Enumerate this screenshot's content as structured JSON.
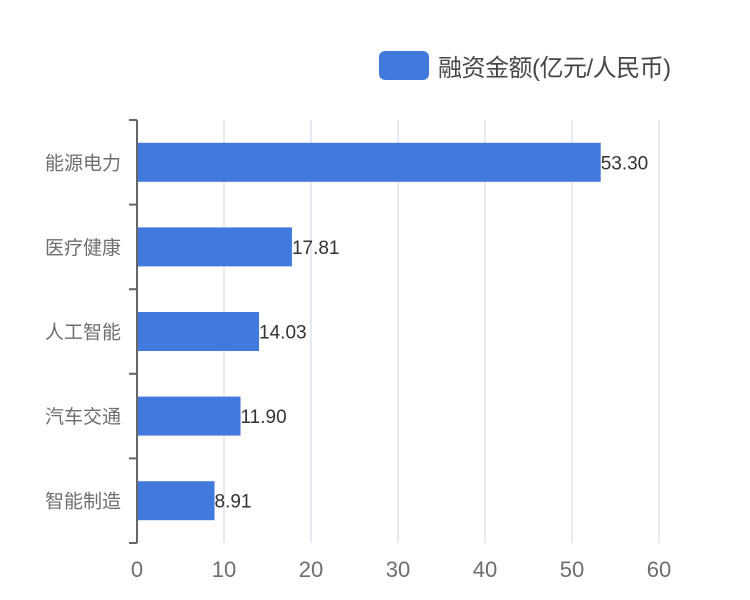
{
  "legend": {
    "label": "融资金额(亿元/人民币)",
    "color": "#4279DC"
  },
  "colors": {
    "bar": "#4279DC",
    "grid": "#dde3ec",
    "axis": "#666666"
  },
  "chart_data": {
    "type": "bar",
    "orientation": "horizontal",
    "title": "",
    "xlabel": "",
    "ylabel": "",
    "categories": [
      "能源电力",
      "医疗健康",
      "人工智能",
      "汽车交通",
      "智能制造"
    ],
    "series": [
      {
        "name": "融资金额(亿元/人民币)",
        "values": [
          53.3,
          17.81,
          14.03,
          11.9,
          8.91
        ]
      }
    ],
    "value_labels": [
      "53.30",
      "17.81",
      "14.03",
      "11.90",
      "8.91"
    ],
    "xlim": [
      0,
      60
    ],
    "x_ticks": [
      "0",
      "10",
      "20",
      "30",
      "40",
      "50",
      "60"
    ],
    "grid": true,
    "legend_position": "top-right"
  }
}
